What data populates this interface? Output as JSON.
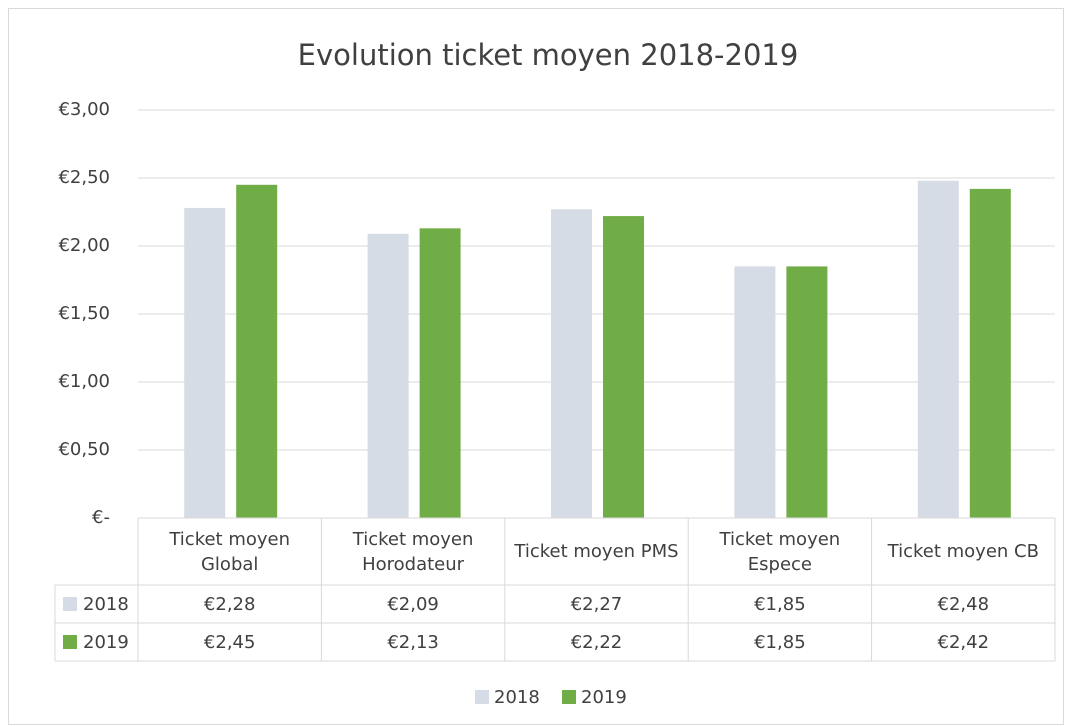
{
  "chart_data": {
    "type": "bar",
    "title": "Evolution ticket moyen 2018-2019",
    "categories": [
      "Ticket moyen Global",
      "Ticket moyen Horodateur",
      "Ticket moyen PMS",
      "Ticket moyen Espece",
      "Ticket moyen CB"
    ],
    "series": [
      {
        "name": "2018",
        "color": "#d6dce5",
        "values": [
          2.28,
          2.09,
          2.27,
          1.85,
          2.48
        ],
        "value_labels": [
          "€2,28",
          "€2,09",
          "€2,27",
          "€1,85",
          "€2,48"
        ]
      },
      {
        "name": "2019",
        "color": "#70ad47",
        "values": [
          2.45,
          2.13,
          2.22,
          1.85,
          2.42
        ],
        "value_labels": [
          "€2,45",
          "€2,13",
          "€2,22",
          "€1,85",
          "€2,42"
        ]
      }
    ],
    "ylim": [
      0,
      3
    ],
    "yticks": [
      {
        "value": 0,
        "label": "€-"
      },
      {
        "value": 0.5,
        "label": "€0,50"
      },
      {
        "value": 1,
        "label": "€1,00"
      },
      {
        "value": 1.5,
        "label": "€1,50"
      },
      {
        "value": 2,
        "label": "€2,00"
      },
      {
        "value": 2.5,
        "label": "€2,50"
      },
      {
        "value": 3,
        "label": "€3,00"
      }
    ],
    "grid": true,
    "legend": "bottom",
    "data_table": true
  }
}
